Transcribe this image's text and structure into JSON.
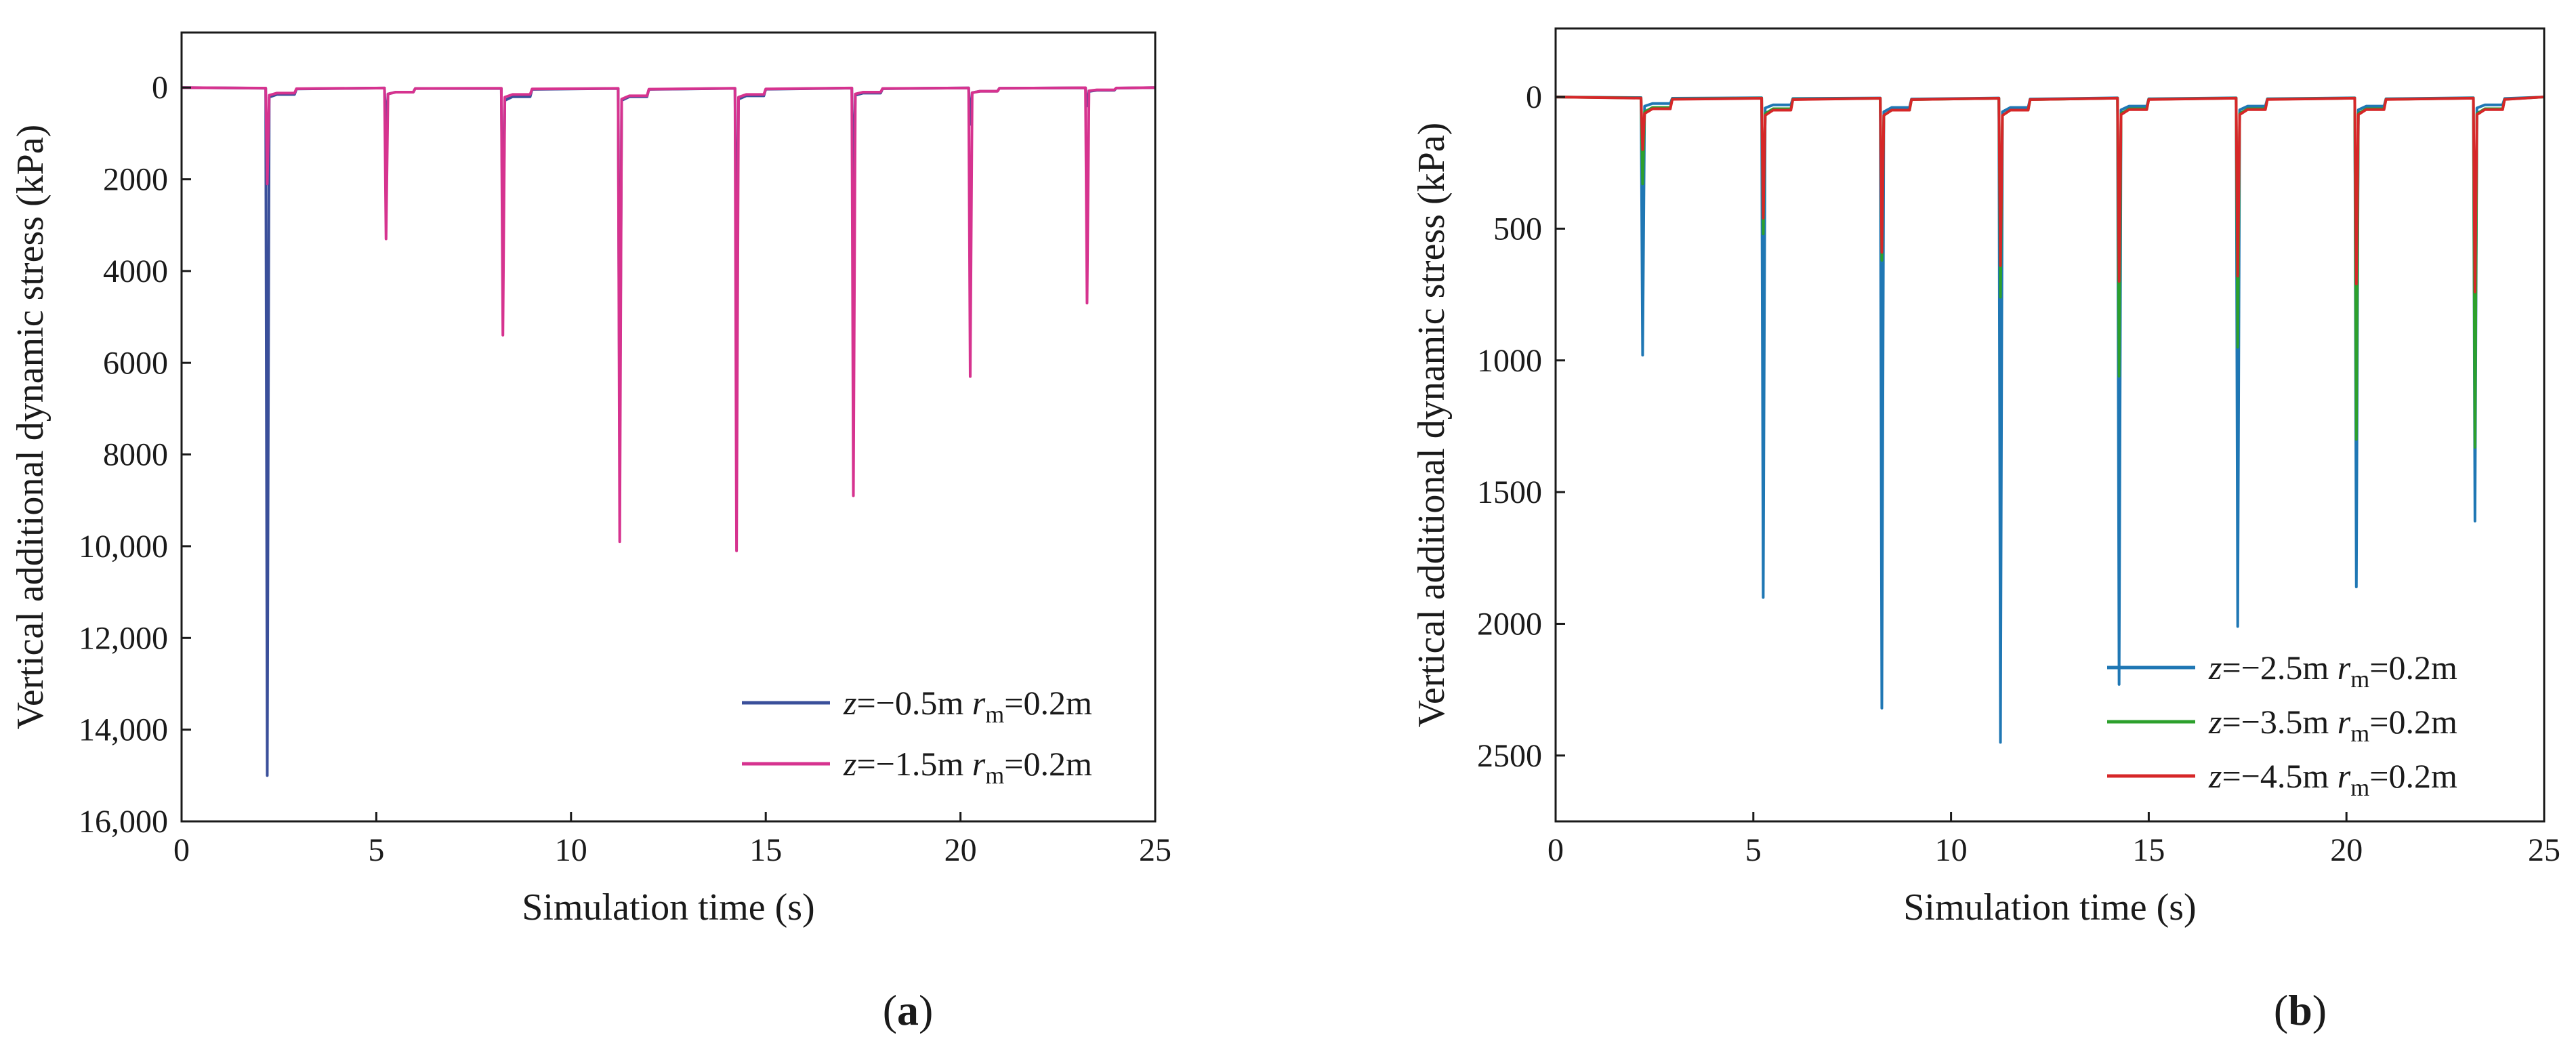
{
  "chart_data": [
    {
      "panel": "a",
      "panel_label": {
        "open": "(",
        "letter": "a",
        "close": ")"
      },
      "type": "line",
      "xlabel": "Simulation time (s)",
      "ylabel": "Vertical additional dynamic stress (kPa)",
      "y_inverted": true,
      "xlim": [
        0,
        25
      ],
      "ylim": [
        -1200,
        16000
      ],
      "xticks": [
        0,
        5,
        10,
        15,
        20,
        25
      ],
      "xtick_labels": [
        "0",
        "5",
        "10",
        "15",
        "20",
        "25"
      ],
      "yticks": [
        0,
        2000,
        4000,
        6000,
        8000,
        10000,
        12000,
        14000,
        16000
      ],
      "ytick_labels": [
        "0",
        "2000",
        "4000",
        "6000",
        "8000",
        "10,000",
        "12,000",
        "14,000",
        "16,000"
      ],
      "legend_position": "bottom-right",
      "baseline": 0,
      "series": [
        {
          "z": "−0.5m",
          "rm": "0.2m",
          "color": "#3a4f9a",
          "legend": {
            "zsym": "z",
            "zval": "=−0.5m ",
            "rsym": "r",
            "rsub": "m",
            "rval": "=0.2m"
          },
          "peaks": [
            {
              "t": 2.2,
              "value": 15000,
              "settle": 150
            },
            {
              "t": 5.25,
              "value": 1000,
              "settle": 100
            },
            {
              "t": 8.25,
              "value": 3800,
              "settle": 200
            },
            {
              "t": 11.25,
              "value": 8300,
              "settle": 200
            },
            {
              "t": 14.25,
              "value": 4800,
              "settle": 180
            },
            {
              "t": 17.25,
              "value": 2300,
              "settle": 120
            },
            {
              "t": 20.25,
              "value": 800,
              "settle": 80
            },
            {
              "t": 23.25,
              "value": 400,
              "settle": 60
            }
          ]
        },
        {
          "z": "−1.5m",
          "rm": "0.2m",
          "color": "#d6338f",
          "legend": {
            "zsym": "z",
            "zval": "=−1.5m ",
            "rsym": "r",
            "rsub": "m",
            "rval": "=0.2m"
          },
          "peaks": [
            {
              "t": 2.2,
              "value": 2100,
              "settle": 120
            },
            {
              "t": 5.25,
              "value": 3300,
              "settle": 100
            },
            {
              "t": 8.25,
              "value": 5400,
              "settle": 150
            },
            {
              "t": 11.25,
              "value": 9900,
              "settle": 180
            },
            {
              "t": 14.25,
              "value": 10100,
              "settle": 150
            },
            {
              "t": 17.25,
              "value": 8900,
              "settle": 100
            },
            {
              "t": 20.25,
              "value": 6300,
              "settle": 80
            },
            {
              "t": 23.25,
              "value": 4700,
              "settle": 50
            }
          ]
        }
      ]
    },
    {
      "panel": "b",
      "panel_label": {
        "open": "(",
        "letter": "b",
        "close": ")"
      },
      "type": "line",
      "xlabel": "Simulation time (s)",
      "ylabel": "Vertical additional dynamic stress (kPa)",
      "y_inverted": true,
      "xlim": [
        0,
        25
      ],
      "ylim": [
        -260,
        2750
      ],
      "xticks": [
        0,
        5,
        10,
        15,
        20,
        25
      ],
      "xtick_labels": [
        "0",
        "5",
        "10",
        "15",
        "20",
        "25"
      ],
      "yticks": [
        0,
        500,
        1000,
        1500,
        2000,
        2500
      ],
      "ytick_labels": [
        "0",
        "500",
        "1000",
        "1500",
        "2000",
        "2500"
      ],
      "legend_position": "bottom-right",
      "baseline": 0,
      "series": [
        {
          "z": "−2.5m",
          "rm": "0.2m",
          "color": "#1f77b4",
          "legend": {
            "zsym": "z",
            "zval": "=−2.5m ",
            "rsym": "r",
            "rsub": "m",
            "rval": "=0.2m"
          },
          "peaks": [
            {
              "t": 2.2,
              "value": 980,
              "settle": 25
            },
            {
              "t": 5.25,
              "value": 1900,
              "settle": 30
            },
            {
              "t": 8.25,
              "value": 2320,
              "settle": 40
            },
            {
              "t": 11.25,
              "value": 2450,
              "settle": 40
            },
            {
              "t": 14.25,
              "value": 2230,
              "settle": 35
            },
            {
              "t": 17.25,
              "value": 2010,
              "settle": 35
            },
            {
              "t": 20.25,
              "value": 1860,
              "settle": 35
            },
            {
              "t": 23.25,
              "value": 1610,
              "settle": 30
            }
          ]
        },
        {
          "z": "−3.5m",
          "rm": "0.2m",
          "color": "#2ca02c",
          "legend": {
            "zsym": "z",
            "zval": "=−3.5m ",
            "rsym": "r",
            "rsub": "m",
            "rval": "=0.2m"
          },
          "peaks": [
            {
              "t": 2.2,
              "value": 330,
              "settle": 40
            },
            {
              "t": 5.25,
              "value": 520,
              "settle": 45
            },
            {
              "t": 8.25,
              "value": 620,
              "settle": 50
            },
            {
              "t": 11.25,
              "value": 760,
              "settle": 50
            },
            {
              "t": 14.25,
              "value": 1060,
              "settle": 45
            },
            {
              "t": 17.25,
              "value": 950,
              "settle": 45
            },
            {
              "t": 20.25,
              "value": 1300,
              "settle": 45
            },
            {
              "t": 23.25,
              "value": 1330,
              "settle": 45
            }
          ]
        },
        {
          "z": "−4.5m",
          "rm": "0.2m",
          "color": "#d62728",
          "legend": {
            "zsym": "z",
            "zval": "=−4.5m ",
            "rsym": "r",
            "rsub": "m",
            "rval": "=0.2m"
          },
          "peaks": [
            {
              "t": 2.2,
              "value": 200,
              "settle": 45
            },
            {
              "t": 5.25,
              "value": 460,
              "settle": 50
            },
            {
              "t": 8.25,
              "value": 590,
              "settle": 50
            },
            {
              "t": 11.25,
              "value": 640,
              "settle": 50
            },
            {
              "t": 14.25,
              "value": 700,
              "settle": 48
            },
            {
              "t": 17.25,
              "value": 680,
              "settle": 48
            },
            {
              "t": 20.25,
              "value": 710,
              "settle": 48
            },
            {
              "t": 23.25,
              "value": 740,
              "settle": 48
            }
          ]
        }
      ]
    }
  ]
}
